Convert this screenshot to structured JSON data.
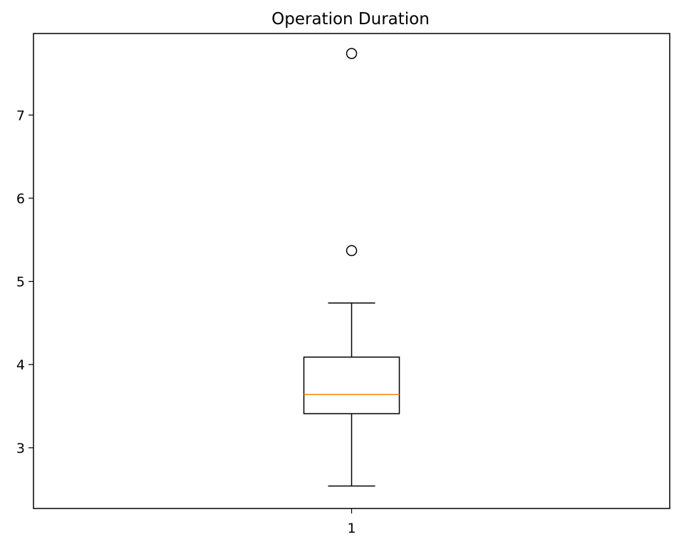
{
  "chart_data": {
    "type": "box",
    "title": "Operation Duration",
    "xlabel": "",
    "ylabel": "",
    "categories": [
      "1"
    ],
    "ylim": [
      2.27,
      7.98
    ],
    "yticks": [
      3,
      4,
      5,
      6,
      7
    ],
    "ytick_labels": [
      "3",
      "4",
      "5",
      "6",
      "7"
    ],
    "grid": false,
    "boxes": [
      {
        "category": "1",
        "whisker_low": 2.54,
        "q1": 3.41,
        "median": 3.64,
        "q3": 4.09,
        "whisker_high": 4.74,
        "outliers": [
          5.37,
          7.74
        ]
      }
    ],
    "colors": {
      "box": "#000000",
      "median": "#ff7f0e",
      "whisker": "#000000",
      "outlier_edge": "#000000",
      "axes": "#000000"
    }
  }
}
